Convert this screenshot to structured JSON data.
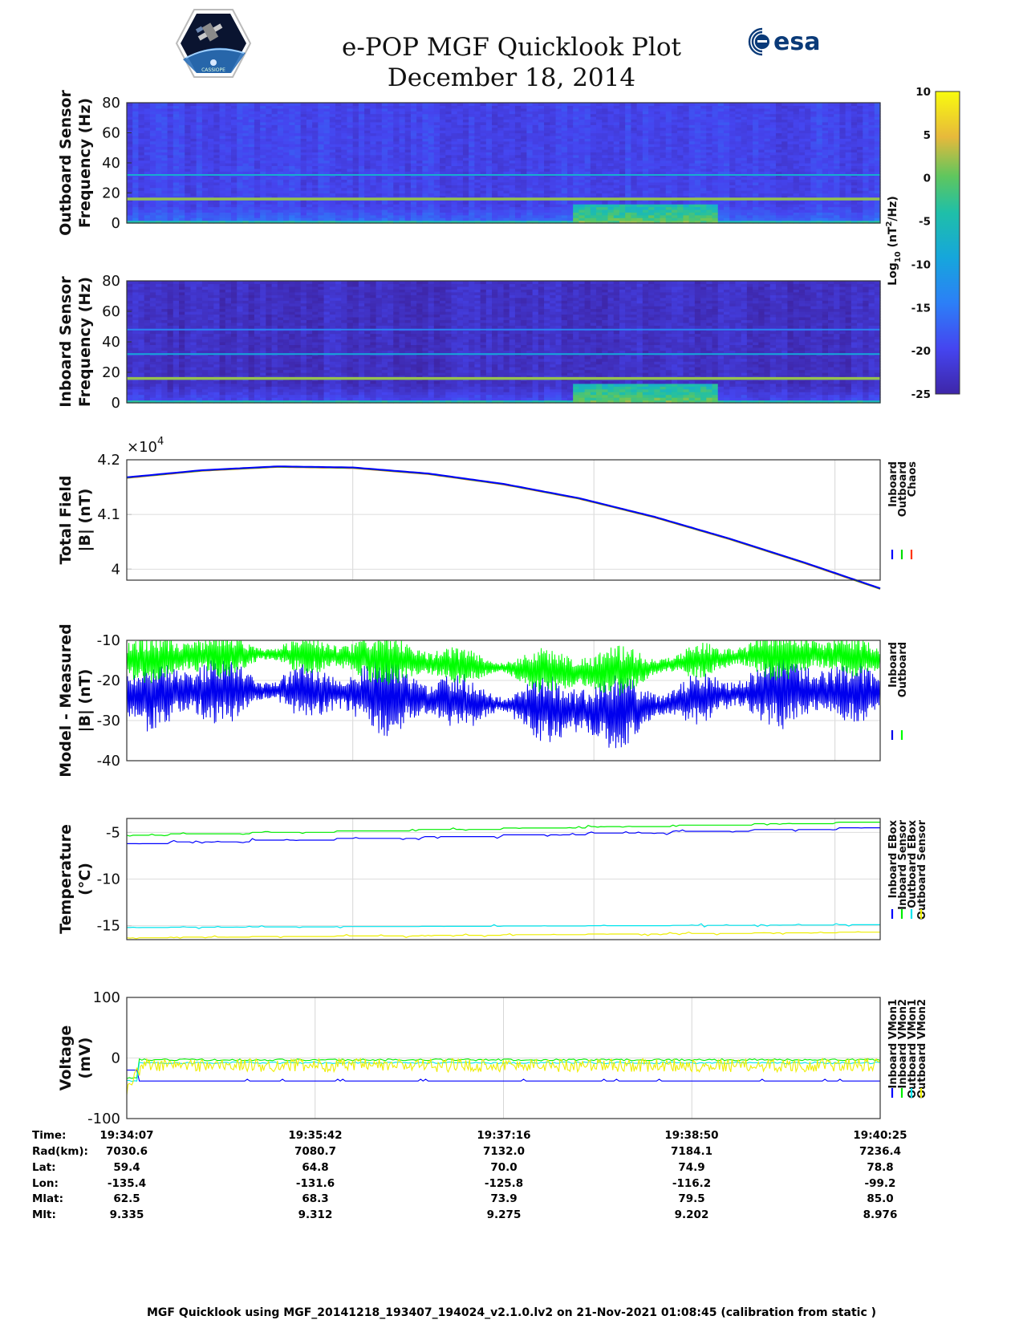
{
  "header": {
    "title": "e-POP MGF Quicklook Plot",
    "date": "December 18, 2014",
    "left_logo_text": "CASSIOPE",
    "right_logo_text": "esa"
  },
  "colorbar": {
    "label": "Log10 (nT2/Hz)",
    "label_base": "Log",
    "label_sub": "10",
    "label_unit_pre": " (nT",
    "label_sup": "2",
    "label_unit_post": "/Hz)",
    "range": [
      -25,
      10
    ],
    "ticks": [
      "10",
      "5",
      "0",
      "-5",
      "-10",
      "-15",
      "-20",
      "-25"
    ]
  },
  "chart_data": [
    {
      "type": "heatmap",
      "name": "Outboard Spectrogram",
      "ylabel_1": "Outboard Sensor",
      "ylabel_2": "Frequency (Hz)",
      "ylim": [
        0,
        80
      ],
      "yticks": [
        "80",
        "60",
        "40",
        "20",
        "0"
      ],
      "background_level": -20,
      "lines_hz": [
        {
          "f": 16,
          "level": 2
        },
        {
          "f": 32,
          "level": -8
        }
      ],
      "activity_window_fraction": [
        0.59,
        0.78
      ]
    },
    {
      "type": "heatmap",
      "name": "Inboard Spectrogram",
      "ylabel_1": "Inboard Sensor",
      "ylabel_2": "Frequency (Hz)",
      "ylim": [
        0,
        80
      ],
      "yticks": [
        "80",
        "60",
        "40",
        "20",
        "0"
      ],
      "background_level": -23,
      "lines_hz": [
        {
          "f": 16,
          "level": 2
        },
        {
          "f": 32,
          "level": -9
        },
        {
          "f": 48,
          "level": -14
        }
      ],
      "activity_window_fraction": [
        0.59,
        0.78
      ]
    },
    {
      "type": "line",
      "name": "Total Field",
      "ylabel_1": "Total Field",
      "ylabel_2": "|B| (nT)",
      "exponent_label": "×10",
      "exponent_power": "4",
      "ylim": [
        3.98,
        4.2
      ],
      "yticks": [
        "4.2",
        "4.1",
        "4"
      ],
      "ytick_values": [
        4.2,
        4.1,
        4.0
      ],
      "x": [
        0,
        0.1,
        0.2,
        0.3,
        0.4,
        0.5,
        0.6,
        0.7,
        0.8,
        0.9,
        1.0
      ],
      "series": [
        {
          "name": "Inboard",
          "color": "#0000ff",
          "values": [
            4.168,
            4.181,
            4.188,
            4.186,
            4.175,
            4.156,
            4.13,
            4.096,
            4.056,
            4.012,
            3.965
          ]
        },
        {
          "name": "Outboard",
          "color": "#00dd00",
          "values": [
            4.1675,
            4.1805,
            4.1875,
            4.1855,
            4.1745,
            4.1555,
            4.1295,
            4.0955,
            4.0555,
            4.0115,
            3.9645
          ]
        },
        {
          "name": "Chaos",
          "color": "#ff3300",
          "values": [
            4.167,
            4.18,
            4.187,
            4.185,
            4.174,
            4.155,
            4.129,
            4.095,
            4.055,
            4.011,
            3.964
          ]
        }
      ]
    },
    {
      "type": "line",
      "name": "Model - Measured",
      "ylabel_1": "Model - Measured",
      "ylabel_2": "|B| (nT)",
      "ylim": [
        -40,
        -10
      ],
      "yticks": [
        "-10",
        "-20",
        "-30",
        "-40"
      ],
      "ytick_values": [
        -10,
        -20,
        -30,
        -40
      ],
      "series": [
        {
          "name": "Inboard",
          "color": "#0000ee",
          "mean": -24,
          "amplitude": 6
        },
        {
          "name": "Outboard",
          "color": "#00ff00",
          "mean": -15,
          "amplitude": 4
        }
      ]
    },
    {
      "type": "line",
      "name": "Temperature",
      "ylabel_1": "Temperature",
      "ylabel_2": "(°C)",
      "ylim": [
        -16.5,
        -3.5
      ],
      "yticks": [
        "-5",
        "-10",
        "-15"
      ],
      "ytick_values": [
        -5,
        -10,
        -15
      ],
      "series": [
        {
          "name": "Inboard EBox",
          "color": "#0000ff",
          "start": -6.2,
          "end": -4.5
        },
        {
          "name": "Inboard Sensor",
          "color": "#00ee00",
          "start": -5.3,
          "end": -3.9
        },
        {
          "name": "Outboard EBox",
          "color": "#00e5ee",
          "start": -15.2,
          "end": -14.9
        },
        {
          "name": "Outboard Sensor",
          "color": "#eeee00",
          "start": -16.3,
          "end": -15.7
        }
      ]
    },
    {
      "type": "line",
      "name": "Voltage",
      "ylabel_1": "Voltage",
      "ylabel_2": "(mV)",
      "ylim": [
        -100,
        100
      ],
      "yticks": [
        "100",
        "0",
        "-100"
      ],
      "ytick_values": [
        100,
        0,
        -100
      ],
      "series": [
        {
          "name": "Inboard VMon1",
          "color": "#0000ff",
          "level": -38
        },
        {
          "name": "Inboard VMon2",
          "color": "#00ee00",
          "level": -3
        },
        {
          "name": "Outboard VMon1",
          "color": "#00e5ee",
          "level": -8
        },
        {
          "name": "Outboard VMon2",
          "color": "#eeee00",
          "level": -12
        }
      ]
    }
  ],
  "info_table": {
    "row_labels": [
      "Time:",
      "Rad(km):",
      "Lat:",
      "Lon:",
      "Mlat:",
      "Mlt:"
    ],
    "columns": [
      [
        "19:34:07",
        "7030.6",
        "59.4",
        "-135.4",
        "62.5",
        "9.335"
      ],
      [
        "19:35:42",
        "7080.7",
        "64.8",
        "-131.6",
        "68.3",
        "9.312"
      ],
      [
        "19:37:16",
        "7132.0",
        "70.0",
        "-125.8",
        "73.9",
        "9.275"
      ],
      [
        "19:38:50",
        "7184.1",
        "74.9",
        "-116.2",
        "79.5",
        "9.202"
      ],
      [
        "19:40:25",
        "7236.4",
        "78.8",
        "-99.2",
        "85.0",
        "8.976"
      ]
    ]
  },
  "footer": "MGF Quicklook using MGF_20141218_193407_194024_v2.1.0.lv2 on 21-Nov-2021 01:08:45 (calibration from static )"
}
